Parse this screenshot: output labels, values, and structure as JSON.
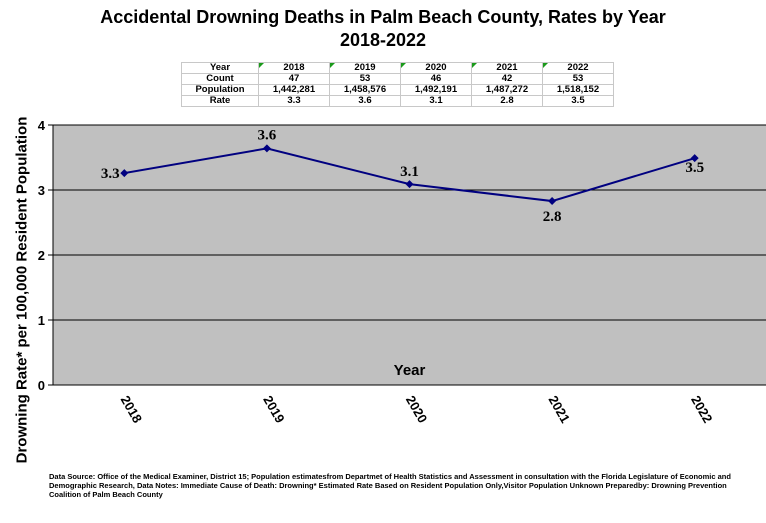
{
  "chart_data": {
    "type": "line",
    "title": "Accidental Drowning Deaths in Palm Beach County, Rates by Year",
    "subtitle": "2018-2022",
    "xlabel": "Year",
    "ylabel": "Drowning Rate* per 100,000 Resident Population",
    "categories": [
      "2018",
      "2019",
      "2020",
      "2021",
      "2022"
    ],
    "series": [
      {
        "values": [
          3.26,
          3.64,
          3.09,
          2.83,
          3.49
        ],
        "data_labels": [
          "3.3",
          "3.6",
          "3.1",
          "2.8",
          "3.5"
        ]
      }
    ],
    "ylim": [
      0,
      4
    ],
    "yticks": [
      "0",
      "1",
      "2",
      "3",
      "4"
    ],
    "grid": true,
    "legend": "none",
    "colors": {
      "plot_background": "#c0c0c0",
      "line": "#000080",
      "gridline": "#000000"
    }
  },
  "data_table": {
    "headers": [
      "Year",
      "2018",
      "2019",
      "2020",
      "2021",
      "2022"
    ],
    "rows": [
      [
        "Count",
        "47",
        "53",
        "46",
        "42",
        "53"
      ],
      [
        "Population",
        "1,442,281",
        "1,458,576",
        "1,492,191",
        "1,487,272",
        "1,518,152"
      ],
      [
        "Rate",
        "3.3",
        "3.6",
        "3.1",
        "2.8",
        "3.5"
      ]
    ]
  },
  "footnote": "Data Source: Office of the Medical Examiner, District 15; Population estimatesfrom Departmet of Health Statistics and Assessment in consultation with the Florida Legislature of Economic and Demographic Research, Data Notes: Immediate Cause of Death: Drowning* Estimated Rate Based on Resident Population Only,Visitor Population Unknown Preparedby: Drowning Prevention Coalition of Palm Beach County"
}
